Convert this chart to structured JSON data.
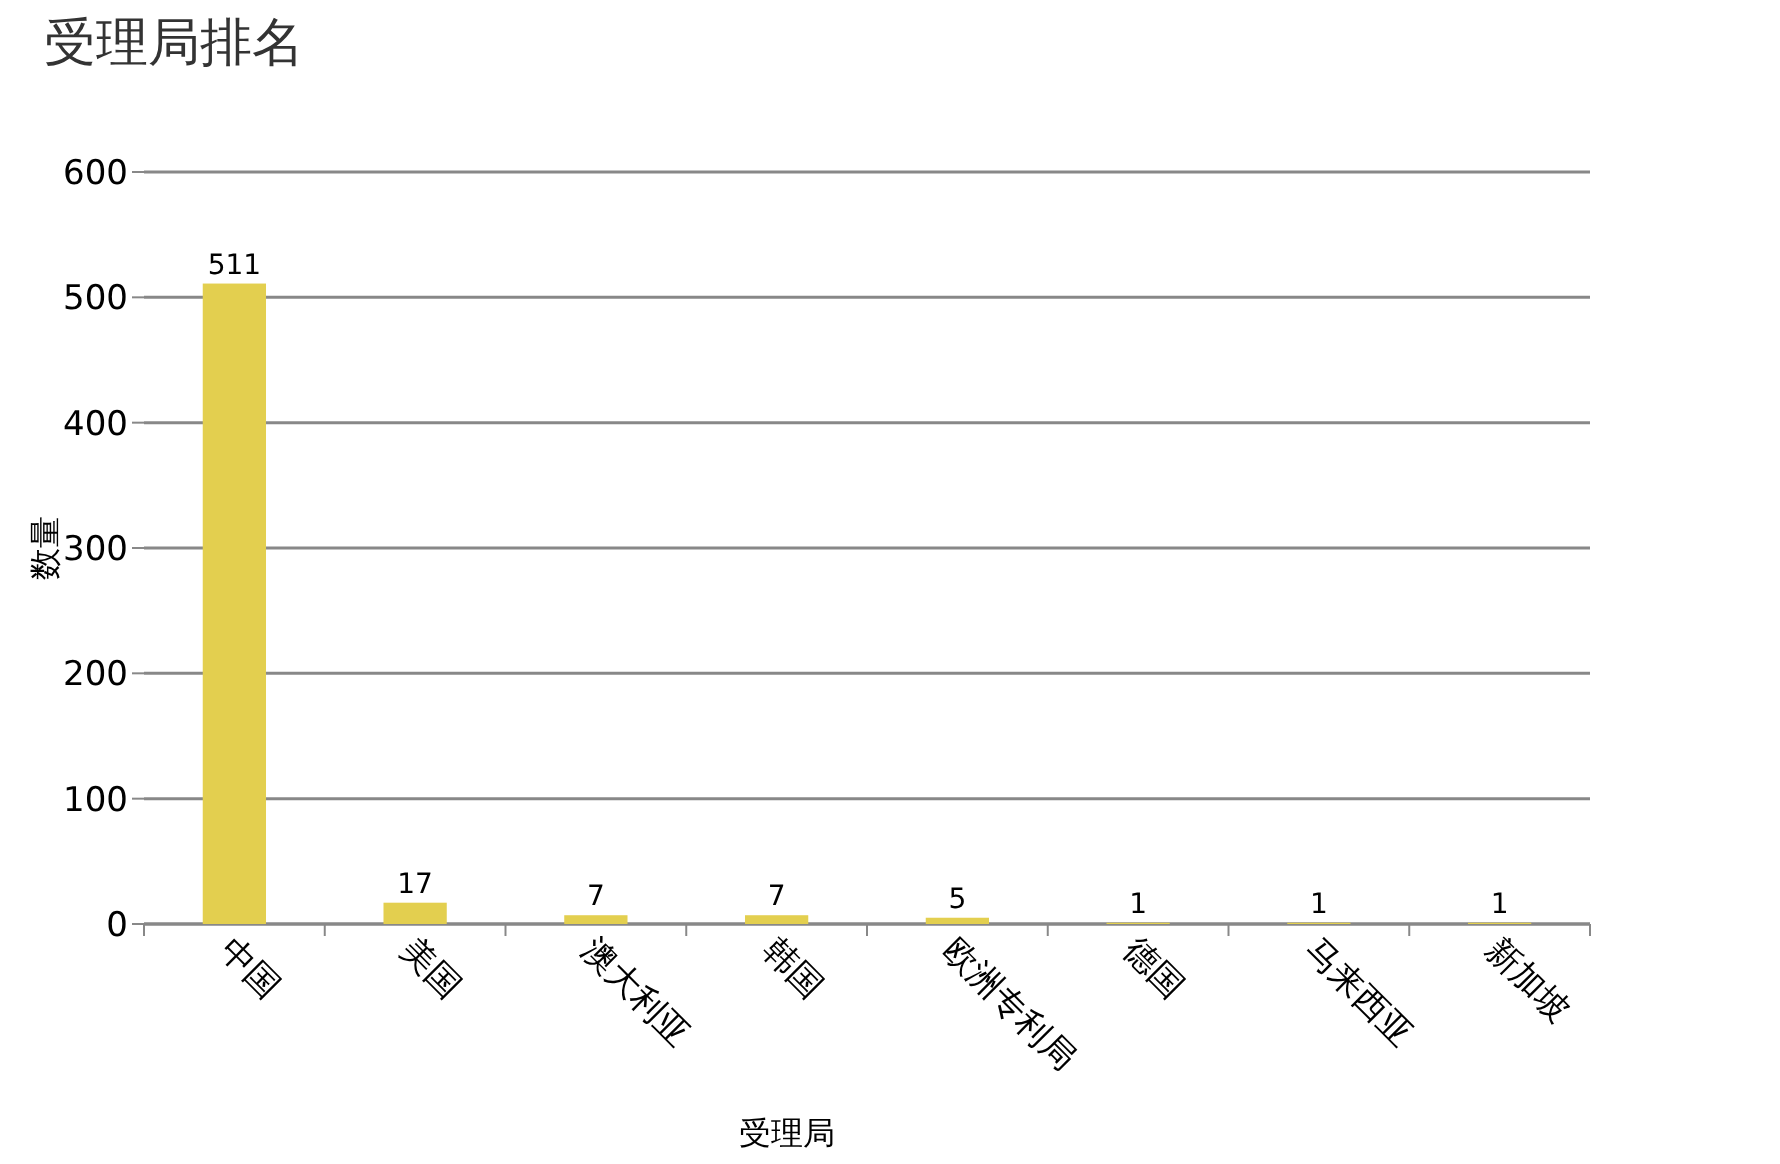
{
  "chart_data": {
    "type": "bar",
    "title": "受理局排名",
    "xlabel": "受理局",
    "ylabel": "数量",
    "categories": [
      "中国",
      "美国",
      "澳大利亚",
      "韩国",
      "欧洲专利局",
      "德国",
      "马来西亚",
      "新加坡"
    ],
    "values": [
      511,
      17,
      7,
      7,
      5,
      1,
      1,
      1
    ],
    "color": "#e3cf4f",
    "ylim": [
      0,
      600
    ],
    "yticks": [
      0,
      100,
      200,
      300,
      400,
      500,
      600
    ],
    "grid": "y",
    "data_labels": true
  }
}
